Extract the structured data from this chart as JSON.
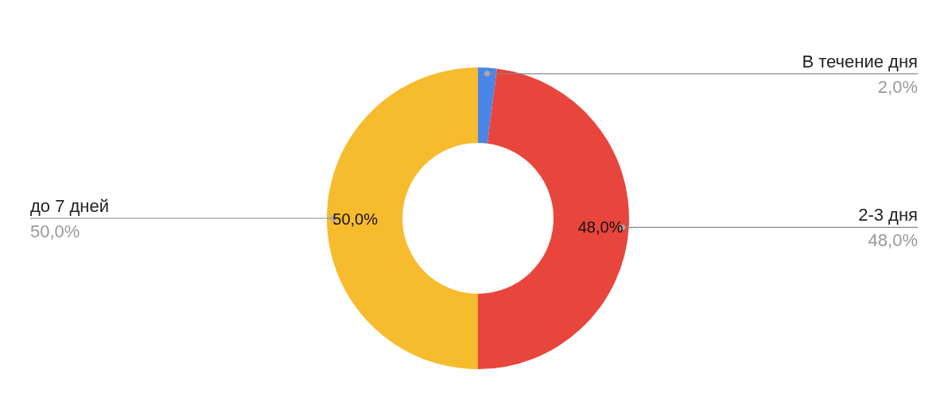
{
  "chart_data": {
    "type": "donut",
    "categories": [
      "В течение дня",
      "2-3 дня",
      "до 7 дней"
    ],
    "values": [
      2,
      48,
      50
    ],
    "colors": [
      "#4a86e8",
      "#e8453c",
      "#f7bb2e"
    ],
    "value_labels": [
      "2,0%",
      "48,0%",
      "50,0%"
    ],
    "legend": false
  }
}
